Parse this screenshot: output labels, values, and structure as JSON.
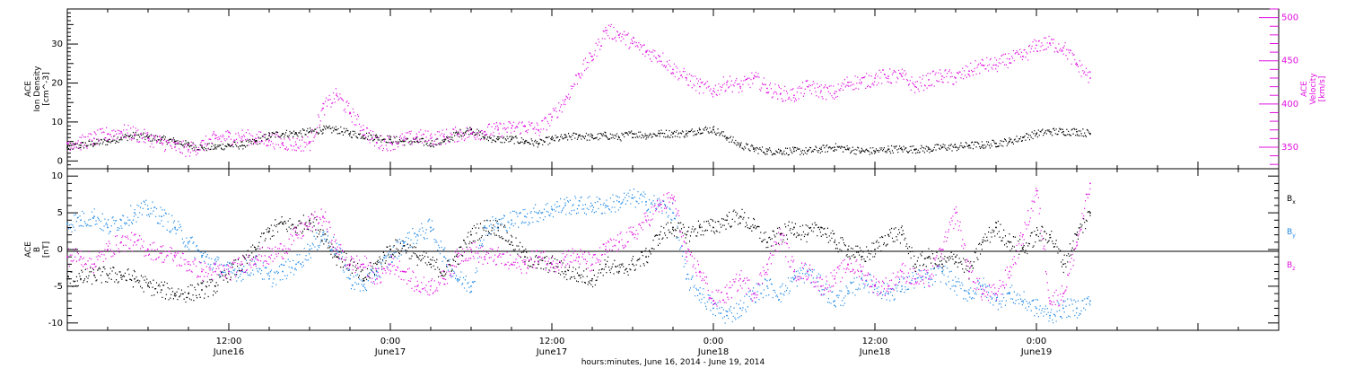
{
  "colors": {
    "black": "#000000",
    "magenta": "#e010e0",
    "blue": "#1e88e5"
  },
  "chart_data": [
    {
      "type": "scatter",
      "panel": "plasma",
      "ylabel_left": [
        "ACE",
        "Ion Density",
        "[cm^-3]"
      ],
      "ylabel_right": [
        "ACE",
        "Velocity",
        "[km/s]"
      ],
      "ylim": [
        -2,
        39
      ],
      "y2lim": [
        325,
        510
      ],
      "yticks": [
        0,
        10,
        20,
        30
      ],
      "y2ticks": [
        350,
        400,
        450,
        500
      ],
      "series": [
        {
          "axis": "left",
          "color": "#000000",
          "x": [
            0,
            1,
            2,
            3,
            4,
            5,
            6,
            7,
            8,
            9,
            10,
            11,
            12,
            13,
            14,
            15,
            16,
            17,
            18,
            19,
            20,
            21,
            22,
            23,
            24,
            25,
            26,
            27,
            28,
            29,
            30,
            31,
            32,
            33,
            34,
            35,
            36,
            37,
            38,
            39,
            40,
            41,
            42,
            43,
            44,
            45,
            46,
            47,
            48,
            49,
            50,
            51,
            52,
            53,
            54,
            55,
            56,
            57,
            58,
            59,
            60,
            61,
            62,
            63,
            64,
            65,
            66,
            67,
            68,
            69,
            70,
            71,
            72,
            73,
            74,
            75,
            76
          ],
          "y": [
            3.5,
            4,
            4.5,
            5,
            6,
            6.5,
            6,
            5.5,
            5,
            4,
            3.5,
            3.5,
            4,
            4,
            5,
            6.5,
            7,
            7,
            7.5,
            8,
            8,
            7,
            6.5,
            6,
            5.5,
            5,
            5,
            4.5,
            5,
            7,
            8,
            6,
            5.5,
            5.5,
            5,
            4.5,
            5.5,
            6,
            6.5,
            6,
            6.5,
            6,
            7,
            6.5,
            7,
            7,
            7,
            8,
            8,
            6,
            4,
            3,
            2.5,
            2.5,
            2.5,
            2.5,
            3,
            3.5,
            3,
            2.5,
            2.5,
            3,
            3,
            3,
            3,
            3.5,
            3.5,
            4,
            4,
            4.5,
            5,
            6,
            7,
            7.5,
            7.5,
            7.5,
            7
          ]
        },
        {
          "axis": "right",
          "color": "#e010e0",
          "x": [
            0,
            1,
            2,
            3,
            4,
            5,
            6,
            7,
            8,
            9,
            10,
            11,
            12,
            13,
            14,
            15,
            16,
            17,
            18,
            19,
            20,
            21,
            22,
            23,
            24,
            25,
            26,
            27,
            28,
            29,
            30,
            31,
            32,
            33,
            34,
            35,
            36,
            37,
            38,
            39,
            40,
            41,
            42,
            43,
            44,
            45,
            46,
            47,
            48,
            49,
            50,
            51,
            52,
            53,
            54,
            55,
            56,
            57,
            58,
            59,
            60,
            61,
            62,
            63,
            64,
            65,
            66,
            67,
            68,
            69,
            70,
            71,
            72,
            73,
            74,
            75,
            76
          ],
          "y": [
            355,
            355,
            360,
            365,
            368,
            365,
            360,
            355,
            350,
            347,
            352,
            360,
            362,
            362,
            360,
            358,
            355,
            353,
            355,
            395,
            410,
            390,
            370,
            355,
            355,
            358,
            362,
            360,
            362,
            365,
            366,
            368,
            370,
            372,
            374,
            370,
            385,
            405,
            435,
            455,
            485,
            480,
            470,
            460,
            455,
            440,
            430,
            420,
            415,
            425,
            420,
            430,
            418,
            412,
            410,
            420,
            415,
            412,
            425,
            425,
            430,
            432,
            432,
            420,
            428,
            432,
            430,
            438,
            445,
            445,
            452,
            455,
            468,
            470,
            465,
            445,
            430
          ]
        }
      ]
    },
    {
      "type": "scatter",
      "panel": "magnetic-field",
      "ylabel": [
        "ACE",
        "B",
        "[nT]"
      ],
      "ylim": [
        -11,
        11
      ],
      "yticks": [
        -10,
        -5,
        0,
        5,
        10
      ],
      "series": [
        {
          "name": "Bx",
          "color": "#000000",
          "x": [
            0,
            1,
            2,
            3,
            4,
            5,
            6,
            7,
            8,
            9,
            10,
            11,
            12,
            13,
            14,
            15,
            16,
            17,
            18,
            19,
            20,
            21,
            22,
            23,
            24,
            25,
            26,
            27,
            28,
            29,
            30,
            31,
            32,
            33,
            34,
            35,
            36,
            37,
            38,
            39,
            40,
            41,
            42,
            43,
            44,
            45,
            46,
            47,
            48,
            49,
            50,
            51,
            52,
            53,
            54,
            55,
            56,
            57,
            58,
            59,
            60,
            61,
            62,
            63,
            64,
            65,
            66,
            67,
            68,
            69,
            70,
            71,
            72,
            73,
            74,
            75,
            76
          ],
          "y": [
            -4,
            -4,
            -3.5,
            -3.5,
            -3.5,
            -4,
            -5,
            -5.5,
            -6,
            -6,
            -5.5,
            -5,
            -3,
            -2,
            0,
            2.5,
            3.5,
            3,
            4,
            2,
            -1,
            -2,
            -4,
            -2,
            0,
            0.5,
            -1,
            -2,
            -3,
            -1,
            2,
            3,
            3,
            1,
            -1,
            -2,
            -2,
            -3,
            -3.5,
            -4,
            -2,
            -3,
            -2,
            -1,
            2,
            3,
            2,
            3,
            3,
            4,
            4.5,
            3,
            1,
            2,
            3,
            2,
            3,
            1,
            0,
            -1,
            0,
            2,
            2,
            -2,
            -1,
            -2,
            -1,
            -3,
            1,
            3,
            1,
            0,
            2,
            2,
            -2,
            2,
            5
          ]
        },
        {
          "name": "By",
          "color": "#1e88e5",
          "x": [
            0,
            1,
            2,
            3,
            4,
            5,
            6,
            7,
            8,
            9,
            10,
            11,
            12,
            13,
            14,
            15,
            16,
            17,
            18,
            19,
            20,
            21,
            22,
            23,
            24,
            25,
            26,
            27,
            28,
            29,
            30,
            31,
            32,
            33,
            34,
            35,
            36,
            37,
            38,
            39,
            40,
            41,
            42,
            43,
            44,
            45,
            46,
            47,
            48,
            49,
            50,
            51,
            52,
            53,
            54,
            55,
            56,
            57,
            58,
            59,
            60,
            61,
            62,
            63,
            64,
            65,
            66,
            67,
            68,
            69,
            70,
            71,
            72,
            73,
            74,
            75,
            76
          ],
          "y": [
            3.5,
            4,
            4.5,
            3,
            4,
            5,
            5.5,
            4.5,
            3,
            1,
            -1,
            -2,
            -3,
            -3,
            -2,
            -4,
            -3,
            -2,
            0,
            2,
            0,
            -4,
            -5,
            -3,
            -1,
            1,
            2,
            3,
            -1,
            -4,
            -5,
            3,
            3.5,
            4,
            4.5,
            5,
            5.5,
            6,
            6,
            6,
            6,
            6.5,
            7,
            6.5,
            6,
            5,
            -4,
            -6,
            -8,
            -9,
            -8,
            -6,
            -5,
            -6,
            -4,
            -3,
            -5,
            -7,
            -6,
            -4,
            -5,
            -6,
            -5,
            -4,
            -4,
            -3,
            -5,
            -6,
            -5,
            -7,
            -6,
            -7,
            -8,
            -9,
            -8,
            -8,
            -7
          ]
        },
        {
          "name": "Bz",
          "color": "#e010e0",
          "x": [
            0,
            1,
            2,
            3,
            4,
            5,
            6,
            7,
            8,
            9,
            10,
            11,
            12,
            13,
            14,
            15,
            16,
            17,
            18,
            19,
            20,
            21,
            22,
            23,
            24,
            25,
            26,
            27,
            28,
            29,
            30,
            31,
            32,
            33,
            34,
            35,
            36,
            37,
            38,
            39,
            40,
            41,
            42,
            43,
            44,
            45,
            46,
            47,
            48,
            49,
            50,
            51,
            52,
            53,
            54,
            55,
            56,
            57,
            58,
            59,
            60,
            61,
            62,
            63,
            64,
            65,
            66,
            67,
            68,
            69,
            70,
            71,
            72,
            73,
            74,
            75,
            76
          ],
          "y": [
            -1,
            -1,
            -2,
            0,
            1,
            1,
            0,
            -0.5,
            -1,
            -2,
            -3,
            -3,
            -3,
            -2,
            -1,
            -1,
            0,
            2,
            3.5,
            4.5,
            0,
            -2,
            -2,
            -4,
            -2,
            -3,
            -5,
            -5,
            -4,
            -1,
            0,
            -1,
            -1,
            -2,
            -2,
            -1,
            -2,
            -1,
            -1,
            -2,
            0,
            1,
            2,
            4,
            6,
            7,
            -1,
            -3,
            -7,
            -6,
            -4,
            -6,
            -2,
            2,
            -3,
            -3,
            -5,
            -4,
            -2,
            -3,
            -5,
            -5,
            -3,
            -4,
            -4,
            0,
            5,
            -3,
            -6,
            -6,
            -3,
            2,
            8,
            -7,
            -6,
            1,
            9
          ]
        }
      ],
      "legend": [
        "B",
        "B",
        "B"
      ],
      "legend_sub": [
        "x",
        "y",
        "z"
      ]
    }
  ],
  "xaxis": {
    "tick_hours": [
      12,
      24,
      36,
      48,
      60,
      72
    ],
    "tick_labels": [
      {
        "time": "12:00",
        "date": "June16"
      },
      {
        "time": "0:00",
        "date": "June17"
      },
      {
        "time": "12:00",
        "date": "June17"
      },
      {
        "time": "0:00",
        "date": "June18"
      },
      {
        "time": "12:00",
        "date": "June18"
      },
      {
        "time": "0:00",
        "date": "June19"
      }
    ],
    "label": "hours:minutes, June 16, 2014 - June 19, 2014"
  }
}
